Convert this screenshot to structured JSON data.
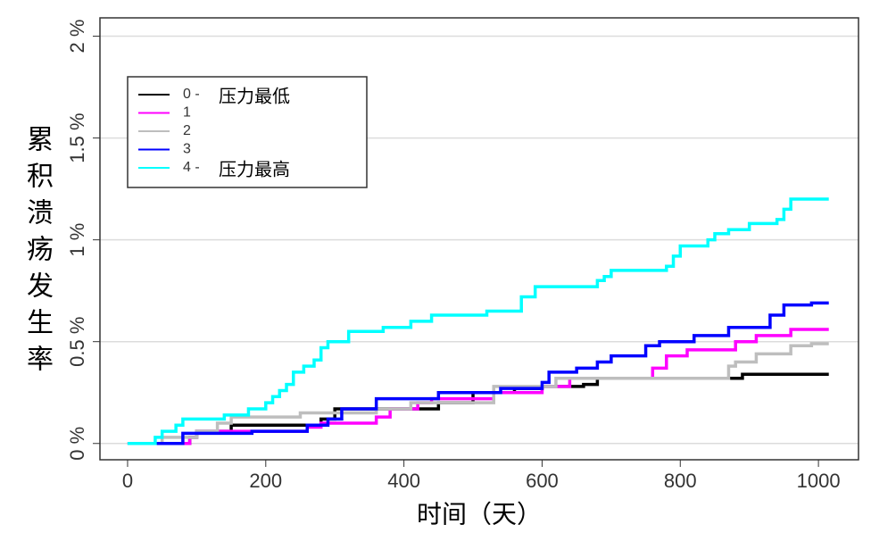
{
  "chart_data": {
    "type": "step",
    "x_label": "时间（天）",
    "y_label": "累积溃疡发生率",
    "xlim": [
      -40,
      1058
    ],
    "xticks": [
      0,
      200,
      400,
      600,
      800,
      1000
    ],
    "ylim": [
      -0.08,
      2.09
    ],
    "yticks": [
      {
        "value": 0,
        "label": "0 %"
      },
      {
        "value": 0.5,
        "label": "0.5 %"
      },
      {
        "value": 1,
        "label": "1 %"
      },
      {
        "value": 1.5,
        "label": "1.5 %"
      },
      {
        "value": 2,
        "label": "2 %"
      }
    ],
    "grid": true,
    "legend": "upper left",
    "series": [
      {
        "name": "0 -",
        "note": "压力最低",
        "color": "#000000",
        "x": [
          0,
          90,
          100,
          150,
          280,
          300,
          420,
          450,
          500,
          560,
          600,
          660,
          680,
          880,
          890,
          1015
        ],
        "values": [
          0,
          0.03,
          0.06,
          0.09,
          0.12,
          0.17,
          0.17,
          0.2,
          0.25,
          0.27,
          0.28,
          0.29,
          0.32,
          0.32,
          0.34,
          0.34
        ]
      },
      {
        "name": "1",
        "color": "#ff00ff",
        "x": [
          0,
          90,
          100,
          260,
          280,
          360,
          380,
          420,
          440,
          530,
          600,
          640,
          680,
          760,
          780,
          810,
          880,
          910,
          960,
          1015
        ],
        "values": [
          0,
          0.03,
          0.06,
          0.08,
          0.1,
          0.13,
          0.17,
          0.2,
          0.22,
          0.25,
          0.28,
          0.32,
          0.32,
          0.37,
          0.43,
          0.46,
          0.5,
          0.53,
          0.56,
          0.56
        ]
      },
      {
        "name": "2",
        "color": "#bebebe",
        "x": [
          0,
          50,
          100,
          130,
          150,
          250,
          360,
          410,
          530,
          620,
          750,
          870,
          880,
          910,
          960,
          990,
          1015
        ],
        "values": [
          0,
          0.03,
          0.06,
          0.1,
          0.13,
          0.15,
          0.17,
          0.2,
          0.28,
          0.32,
          0.32,
          0.38,
          0.4,
          0.44,
          0.48,
          0.49,
          0.49
        ]
      },
      {
        "name": "3",
        "color": "#0000ff",
        "x": [
          0,
          40,
          80,
          180,
          260,
          290,
          310,
          360,
          450,
          510,
          540,
          600,
          610,
          650,
          680,
          700,
          750,
          770,
          820,
          870,
          930,
          950,
          990,
          1015
        ],
        "values": [
          0,
          0,
          0.05,
          0.06,
          0.09,
          0.12,
          0.17,
          0.22,
          0.25,
          0.25,
          0.27,
          0.3,
          0.35,
          0.37,
          0.4,
          0.43,
          0.48,
          0.5,
          0.53,
          0.57,
          0.63,
          0.68,
          0.69,
          0.69
        ]
      },
      {
        "name": "4 -",
        "note": "压力最高",
        "color": "#00ffff",
        "x": [
          0,
          40,
          50,
          70,
          80,
          140,
          175,
          200,
          210,
          220,
          230,
          240,
          255,
          270,
          280,
          290,
          320,
          370,
          410,
          440,
          520,
          570,
          590,
          680,
          690,
          700,
          780,
          790,
          800,
          840,
          850,
          870,
          900,
          940,
          950,
          960,
          1015
        ],
        "values": [
          0,
          0.03,
          0.06,
          0.09,
          0.12,
          0.14,
          0.17,
          0.2,
          0.23,
          0.26,
          0.29,
          0.35,
          0.38,
          0.41,
          0.47,
          0.5,
          0.55,
          0.57,
          0.6,
          0.63,
          0.65,
          0.72,
          0.77,
          0.8,
          0.82,
          0.85,
          0.87,
          0.92,
          0.97,
          1.0,
          1.03,
          1.05,
          1.08,
          1.1,
          1.15,
          1.2,
          1.2
        ]
      }
    ]
  }
}
